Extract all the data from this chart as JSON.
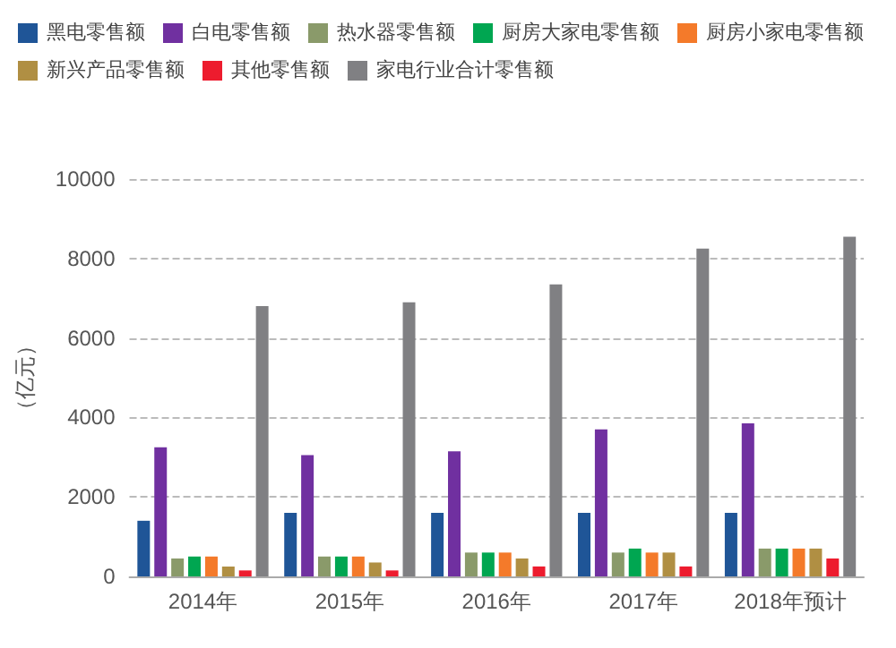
{
  "chart_data": {
    "type": "bar",
    "ylabel": "（亿元）",
    "categories": [
      "2014年",
      "2015年",
      "2016年",
      "2017年",
      "2018年预计"
    ],
    "series": [
      {
        "name": "黑电零售额",
        "color": "#1f5597",
        "values": [
          1400,
          1600,
          1600,
          1600,
          1600
        ]
      },
      {
        "name": "白电零售额",
        "color": "#7030a0",
        "values": [
          3250,
          3050,
          3150,
          3700,
          3850
        ]
      },
      {
        "name": "热水器零售额",
        "color": "#8a9a6a",
        "values": [
          450,
          500,
          600,
          600,
          700
        ]
      },
      {
        "name": "厨房大家电零售额",
        "color": "#00a651",
        "values": [
          500,
          500,
          600,
          700,
          700
        ]
      },
      {
        "name": "厨房小家电零售额",
        "color": "#f47a2a",
        "values": [
          500,
          500,
          600,
          600,
          700
        ]
      },
      {
        "name": "新兴产品零售额",
        "color": "#b08f43",
        "values": [
          250,
          350,
          450,
          600,
          700
        ]
      },
      {
        "name": "其他零售额",
        "color": "#ed1c2e",
        "values": [
          150,
          150,
          250,
          250,
          450
        ]
      },
      {
        "name": "家电行业合计零售额",
        "color": "#808083",
        "values": [
          6800,
          6900,
          7350,
          8250,
          8550
        ]
      }
    ],
    "ylim": [
      0,
      10000
    ],
    "yticks": [
      0,
      2000,
      4000,
      6000,
      8000,
      10000
    ],
    "grid": "y",
    "legend": "top"
  }
}
